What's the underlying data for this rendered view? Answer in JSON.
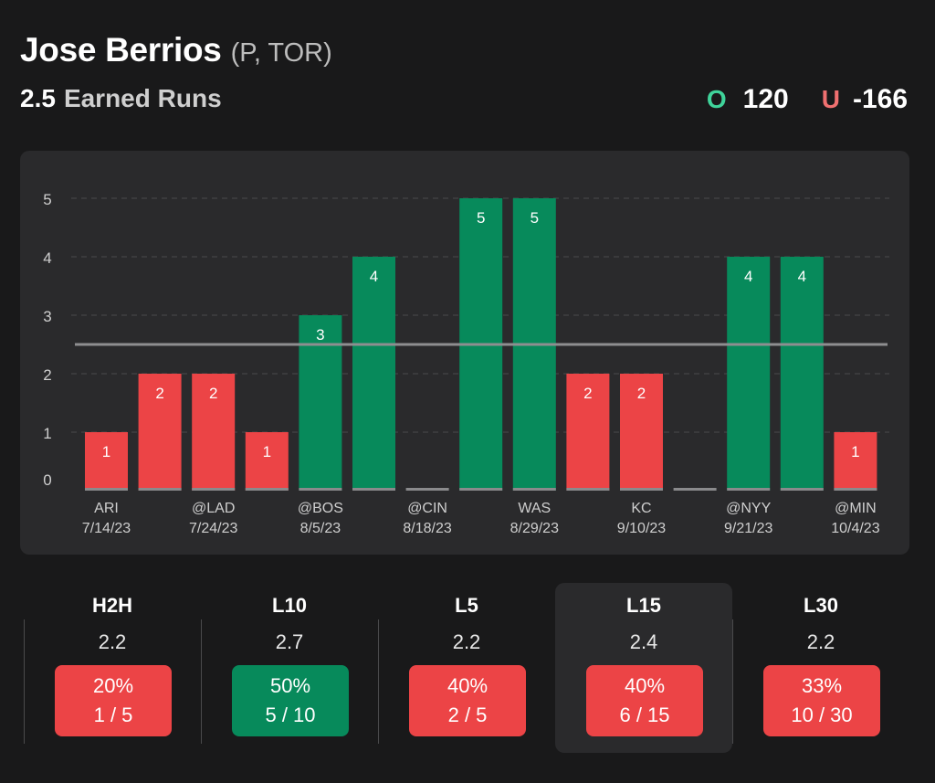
{
  "header": {
    "player_name": "Jose Berrios",
    "player_meta": "(P, TOR)",
    "prop_value": "2.5",
    "prop_label": "Earned Runs"
  },
  "odds": {
    "over_letter": "O",
    "over_value": "120",
    "under_letter": "U",
    "under_value": "-166"
  },
  "colors": {
    "over": "#078a5b",
    "under": "#ec4446",
    "over_text": "#3fd39a",
    "under_text": "#f07070"
  },
  "chart_data": {
    "type": "bar",
    "title": "",
    "xlabel": "",
    "ylabel": "",
    "ylim": [
      0,
      5
    ],
    "yticks": [
      0,
      1,
      2,
      3,
      4,
      5
    ],
    "threshold": 2.5,
    "grid": true,
    "values": [
      1,
      2,
      2,
      1,
      3,
      4,
      0,
      5,
      5,
      2,
      2,
      0,
      4,
      4,
      1
    ],
    "categories": [
      "ARI 7/14/23",
      "",
      "@LAD 7/24/23",
      "",
      "@BOS 8/5/23",
      "",
      "@CIN 8/18/23",
      "",
      "WAS 8/29/23",
      "",
      "KC 9/10/23",
      "",
      "@NYY 9/21/23",
      "",
      "@MIN 10/4/23"
    ],
    "tick_labels": [
      {
        "opponent": "ARI",
        "date": "7/14/23",
        "bar": 0
      },
      {
        "opponent": "@LAD",
        "date": "7/24/23",
        "bar": 2
      },
      {
        "opponent": "@BOS",
        "date": "8/5/23",
        "bar": 4
      },
      {
        "opponent": "@CIN",
        "date": "8/18/23",
        "bar": 6
      },
      {
        "opponent": "WAS",
        "date": "8/29/23",
        "bar": 8
      },
      {
        "opponent": "KC",
        "date": "9/10/23",
        "bar": 10
      },
      {
        "opponent": "@NYY",
        "date": "9/21/23",
        "bar": 12
      },
      {
        "opponent": "@MIN",
        "date": "10/4/23",
        "bar": 14
      }
    ]
  },
  "stats": [
    {
      "label": "H2H",
      "avg": "2.2",
      "pct": "20%",
      "record": "1 / 5",
      "hit": false,
      "active": false
    },
    {
      "label": "L10",
      "avg": "2.7",
      "pct": "50%",
      "record": "5 / 10",
      "hit": true,
      "active": false
    },
    {
      "label": "L5",
      "avg": "2.2",
      "pct": "40%",
      "record": "2 / 5",
      "hit": false,
      "active": false
    },
    {
      "label": "L15",
      "avg": "2.4",
      "pct": "40%",
      "record": "6 / 15",
      "hit": false,
      "active": true
    },
    {
      "label": "L30",
      "avg": "2.2",
      "pct": "33%",
      "record": "10 / 30",
      "hit": false,
      "active": false
    }
  ]
}
